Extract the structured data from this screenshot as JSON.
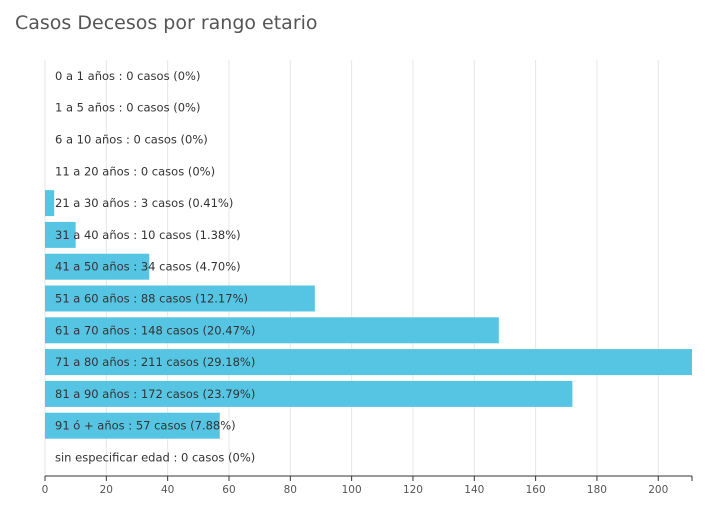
{
  "chart_data": {
    "type": "bar",
    "orientation": "horizontal",
    "title": "Casos Decesos por rango etario",
    "xlabel": "",
    "ylabel": "",
    "xlim": [
      0,
      211
    ],
    "x_ticks": [
      0,
      20,
      40,
      60,
      80,
      100,
      120,
      140,
      160,
      180,
      200
    ],
    "grid": true,
    "legend": "none",
    "bar_color": "#56c5e3",
    "categories": [
      "0 a 1 años",
      "1 a 5 años",
      "6 a 10 años",
      "11 a 20 años",
      "21 a 30 años",
      "31 a 40 años",
      "41 a 50 años",
      "51 a 60 años",
      "61 a 70 años",
      "71 a 80 años",
      "81 a 90 años",
      "91 ó + años",
      "sin especificar edad"
    ],
    "values": [
      0,
      0,
      0,
      0,
      3,
      10,
      34,
      88,
      148,
      211,
      172,
      57,
      0
    ],
    "labels": [
      "0 a 1 años : 0 casos (0%)",
      "1 a 5 años : 0 casos (0%)",
      "6 a 10 años : 0 casos (0%)",
      "11 a 20 años : 0 casos (0%)",
      "21 a 30 años : 3 casos (0.41%)",
      "31 a 40 años : 10 casos (1.38%)",
      "41 a 50 años : 34 casos (4.70%)",
      "51 a 60 años : 88 casos (12.17%)",
      "61 a 70 años : 148 casos (20.47%)",
      "71 a 80 años : 211 casos (29.18%)",
      "81 a 90 años : 172 casos (23.79%)",
      "91 ó + años : 57 casos (7.88%)",
      "sin especificar edad : 0 casos (0%)"
    ]
  }
}
